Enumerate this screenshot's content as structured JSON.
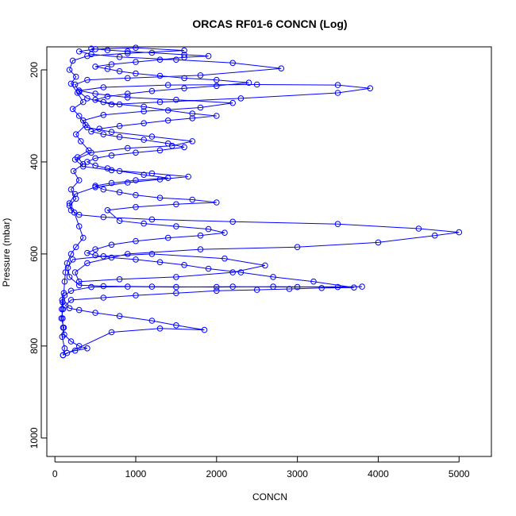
{
  "chart_data": {
    "type": "scatter",
    "title": "ORCAS RF01-6 CONCN (Log)",
    "xlabel": "CONCN",
    "ylabel": "Pressure (mbar)",
    "xlim": [
      -100,
      5400
    ],
    "ylim": [
      1040,
      150
    ],
    "y_reversed": true,
    "x_ticks": [
      "0",
      "1000",
      "2000",
      "3000",
      "4000",
      "5000"
    ],
    "y_ticks": [
      "200",
      "400",
      "600",
      "800",
      "1000"
    ],
    "marker": "open-circle",
    "connected": true,
    "color": "#0000ff",
    "series": [
      {
        "points": [
          [
            100,
            820
          ],
          [
            120,
            805
          ],
          [
            90,
            780
          ],
          [
            110,
            760
          ],
          [
            80,
            740
          ],
          [
            100,
            720
          ],
          [
            95,
            705
          ],
          [
            120,
            690
          ],
          [
            200,
            680
          ],
          [
            450,
            672
          ],
          [
            900,
            671
          ],
          [
            1500,
            672
          ],
          [
            2200,
            671
          ],
          [
            3000,
            672
          ],
          [
            3800,
            671
          ],
          [
            3500,
            672
          ],
          [
            2700,
            671
          ],
          [
            2000,
            672
          ],
          [
            1200,
            671
          ],
          [
            600,
            670
          ],
          [
            300,
            668
          ],
          [
            180,
            650
          ],
          [
            160,
            630
          ],
          [
            220,
            612
          ],
          [
            600,
            605
          ],
          [
            1200,
            600
          ],
          [
            2100,
            610
          ],
          [
            2600,
            625
          ],
          [
            2200,
            640
          ],
          [
            1500,
            650
          ],
          [
            800,
            655
          ],
          [
            300,
            660
          ],
          [
            250,
            640
          ],
          [
            400,
            620
          ],
          [
            900,
            600
          ],
          [
            1800,
            590
          ],
          [
            3000,
            585
          ],
          [
            4000,
            575
          ],
          [
            4700,
            560
          ],
          [
            5000,
            553
          ],
          [
            4500,
            545
          ],
          [
            3500,
            535
          ],
          [
            2200,
            530
          ],
          [
            1200,
            525
          ],
          [
            600,
            520
          ],
          [
            300,
            515
          ],
          [
            200,
            505
          ],
          [
            180,
            490
          ],
          [
            250,
            470
          ],
          [
            500,
            455
          ],
          [
            900,
            445
          ],
          [
            1300,
            438
          ],
          [
            1650,
            432
          ],
          [
            1200,
            425
          ],
          [
            700,
            418
          ],
          [
            350,
            410
          ],
          [
            250,
            395
          ],
          [
            450,
            380
          ],
          [
            900,
            370
          ],
          [
            1450,
            365
          ],
          [
            1700,
            355
          ],
          [
            1200,
            345
          ],
          [
            700,
            335
          ],
          [
            400,
            325
          ],
          [
            350,
            310
          ],
          [
            600,
            298
          ],
          [
            1100,
            290
          ],
          [
            1800,
            282
          ],
          [
            2200,
            272
          ],
          [
            1500,
            265
          ],
          [
            900,
            260
          ],
          [
            500,
            252
          ],
          [
            300,
            245
          ],
          [
            600,
            238
          ],
          [
            1400,
            233
          ],
          [
            2500,
            232
          ],
          [
            3500,
            233
          ],
          [
            3900,
            240
          ],
          [
            3500,
            250
          ],
          [
            2300,
            262
          ],
          [
            1300,
            270
          ],
          [
            700,
            275
          ],
          [
            400,
            262
          ],
          [
            300,
            248
          ],
          [
            250,
            232
          ],
          [
            400,
            222
          ],
          [
            900,
            218
          ],
          [
            1800,
            212
          ],
          [
            2800,
            197
          ],
          [
            2200,
            185
          ],
          [
            1500,
            178
          ],
          [
            800,
            172
          ],
          [
            450,
            166
          ],
          [
            300,
            160
          ],
          [
            500,
            155
          ],
          [
            1000,
            152
          ],
          [
            1600,
            158
          ],
          [
            900,
            164
          ],
          [
            400,
            170
          ],
          [
            220,
            180
          ],
          [
            180,
            200
          ],
          [
            260,
            215
          ],
          [
            200,
            230
          ],
          [
            280,
            250
          ],
          [
            350,
            270
          ],
          [
            220,
            285
          ],
          [
            300,
            300
          ],
          [
            380,
            320
          ],
          [
            260,
            340
          ],
          [
            320,
            355
          ],
          [
            420,
            375
          ],
          [
            280,
            390
          ],
          [
            350,
            405
          ],
          [
            230,
            420
          ],
          [
            300,
            440
          ],
          [
            200,
            460
          ],
          [
            260,
            480
          ],
          [
            180,
            495
          ],
          [
            240,
            510
          ],
          [
            300,
            540
          ],
          [
            350,
            565
          ],
          [
            260,
            585
          ],
          [
            200,
            600
          ],
          [
            150,
            620
          ],
          [
            130,
            640
          ],
          [
            120,
            660
          ],
          [
            110,
            685
          ],
          [
            90,
            700
          ],
          [
            85,
            720
          ],
          [
            95,
            740
          ],
          [
            100,
            760
          ],
          [
            115,
            775
          ],
          [
            200,
            790
          ],
          [
            300,
            800
          ],
          [
            400,
            805
          ],
          [
            250,
            810
          ],
          [
            150,
            815
          ],
          [
            100,
            820
          ],
          [
            700,
            770
          ],
          [
            1300,
            762
          ],
          [
            1850,
            765
          ],
          [
            1500,
            755
          ],
          [
            1200,
            745
          ],
          [
            800,
            735
          ],
          [
            500,
            728
          ],
          [
            300,
            722
          ],
          [
            180,
            718
          ],
          [
            130,
            712
          ],
          [
            200,
            700
          ],
          [
            600,
            695
          ],
          [
            1000,
            690
          ],
          [
            1500,
            685
          ],
          [
            2000,
            680
          ],
          [
            2500,
            678
          ],
          [
            2900,
            676
          ],
          [
            3300,
            674
          ],
          [
            3700,
            673
          ],
          [
            3200,
            660
          ],
          [
            2700,
            650
          ],
          [
            2300,
            640
          ],
          [
            1900,
            632
          ],
          [
            1600,
            624
          ],
          [
            1300,
            618
          ],
          [
            1000,
            612
          ],
          [
            700,
            608
          ],
          [
            500,
            603
          ],
          [
            400,
            598
          ],
          [
            500,
            590
          ],
          [
            700,
            580
          ],
          [
            1000,
            572
          ],
          [
            1400,
            565
          ],
          [
            1800,
            560
          ],
          [
            2100,
            554
          ],
          [
            1900,
            546
          ],
          [
            1500,
            540
          ],
          [
            1100,
            534
          ],
          [
            800,
            528
          ],
          [
            650,
            505
          ],
          [
            1000,
            498
          ],
          [
            1500,
            492
          ],
          [
            2000,
            488
          ],
          [
            1700,
            482
          ],
          [
            1300,
            478
          ],
          [
            1000,
            472
          ],
          [
            800,
            466
          ],
          [
            600,
            460
          ],
          [
            500,
            452
          ],
          [
            700,
            446
          ],
          [
            1000,
            440
          ],
          [
            1400,
            435
          ],
          [
            1100,
            428
          ],
          [
            800,
            420
          ],
          [
            650,
            414
          ],
          [
            500,
            408
          ],
          [
            400,
            400
          ],
          [
            500,
            392
          ],
          [
            700,
            386
          ],
          [
            1000,
            380
          ],
          [
            1300,
            375
          ],
          [
            1600,
            368
          ],
          [
            1400,
            360
          ],
          [
            1100,
            352
          ],
          [
            800,
            346
          ],
          [
            600,
            340
          ],
          [
            450,
            334
          ],
          [
            550,
            328
          ],
          [
            800,
            322
          ],
          [
            1100,
            316
          ],
          [
            1400,
            310
          ],
          [
            1700,
            305
          ],
          [
            2000,
            300
          ],
          [
            1700,
            295
          ],
          [
            1400,
            288
          ],
          [
            1100,
            280
          ],
          [
            800,
            275
          ],
          [
            600,
            270
          ],
          [
            500,
            265
          ],
          [
            650,
            258
          ],
          [
            900,
            252
          ],
          [
            1200,
            246
          ],
          [
            1600,
            240
          ],
          [
            2000,
            235
          ],
          [
            2400,
            228
          ],
          [
            2000,
            222
          ],
          [
            1600,
            218
          ],
          [
            1300,
            213
          ],
          [
            1000,
            208
          ],
          [
            800,
            203
          ],
          [
            650,
            198
          ],
          [
            500,
            193
          ],
          [
            700,
            188
          ],
          [
            1000,
            183
          ],
          [
            1300,
            178
          ],
          [
            1600,
            173
          ],
          [
            1900,
            170
          ],
          [
            1600,
            167
          ],
          [
            1200,
            163
          ],
          [
            900,
            160
          ],
          [
            650,
            157
          ],
          [
            450,
            154
          ]
        ]
      }
    ]
  }
}
